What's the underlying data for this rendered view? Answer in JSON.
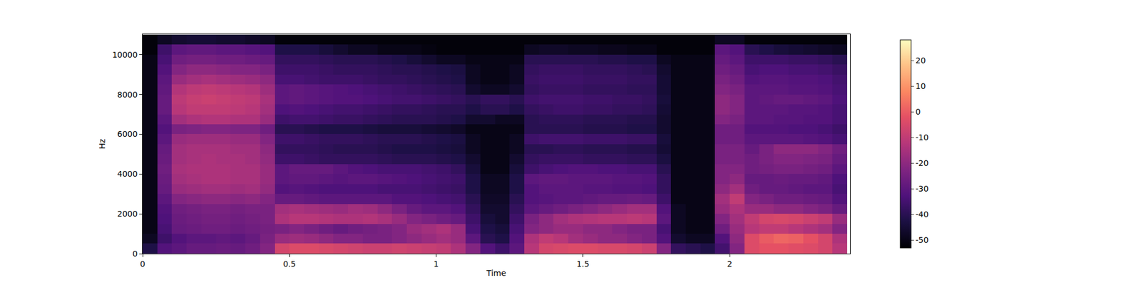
{
  "chart_data": {
    "type": "heatmap",
    "xlabel": "Time",
    "ylabel": "Hz",
    "xlim": [
      0,
      2.41
    ],
    "xticks": [
      0,
      0.5,
      1,
      1.5,
      2
    ],
    "ylim": [
      0,
      11025
    ],
    "yticks": [
      0,
      2000,
      4000,
      6000,
      8000,
      10000
    ],
    "grid": false,
    "colorbar_range": [
      -53,
      28
    ],
    "colorbar_ticks": [
      -50,
      -40,
      -30,
      -20,
      -10,
      0,
      10,
      20
    ],
    "x": [
      0.025,
      0.075,
      0.125,
      0.175,
      0.225,
      0.275,
      0.325,
      0.375,
      0.425,
      0.475,
      0.525,
      0.575,
      0.625,
      0.675,
      0.725,
      0.775,
      0.825,
      0.875,
      0.925,
      0.975,
      1.025,
      1.075,
      1.125,
      1.175,
      1.225,
      1.275,
      1.325,
      1.375,
      1.425,
      1.475,
      1.525,
      1.575,
      1.625,
      1.675,
      1.725,
      1.775,
      1.825,
      1.875,
      1.925,
      1.975,
      2.025,
      2.075,
      2.125,
      2.175,
      2.225,
      2.275,
      2.325,
      2.375
    ],
    "y": [
      250,
      750,
      1250,
      1750,
      2250,
      2750,
      3250,
      3750,
      4250,
      4750,
      5250,
      5750,
      6250,
      6750,
      7250,
      7750,
      8250,
      8750,
      9250,
      9750,
      10250,
      10750
    ],
    "cells": [
      [
        -42,
        -32,
        -30,
        -28,
        -28,
        -27,
        -28,
        -26,
        -22,
        -6,
        -4,
        -4,
        -5,
        -6,
        -7,
        -8,
        -8,
        -7,
        -8,
        -9,
        -10,
        -14,
        -22,
        -32,
        -36,
        -30,
        -12,
        -6,
        -5,
        -4,
        -4,
        -5,
        -5,
        -6,
        -8,
        -22,
        -38,
        -40,
        -42,
        -35,
        -22,
        -4,
        -2,
        -2,
        -3,
        -4,
        -6,
        -12
      ],
      [
        -48,
        -36,
        -32,
        -30,
        -30,
        -29,
        -30,
        -28,
        -24,
        -18,
        -17,
        -18,
        -20,
        -22,
        -22,
        -24,
        -24,
        -22,
        -20,
        -18,
        -16,
        -18,
        -30,
        -40,
        -42,
        -32,
        -14,
        -10,
        -12,
        -16,
        -18,
        -20,
        -20,
        -22,
        -24,
        -32,
        -46,
        -48,
        -48,
        -32,
        -20,
        -4,
        0,
        2,
        1,
        -2,
        -6,
        -14
      ],
      [
        -50,
        -34,
        -28,
        -27,
        -26,
        -26,
        -27,
        -26,
        -25,
        -24,
        -22,
        -24,
        -26,
        -28,
        -26,
        -25,
        -24,
        -22,
        -18,
        -16,
        -14,
        -18,
        -34,
        -42,
        -44,
        -34,
        -22,
        -20,
        -18,
        -18,
        -20,
        -20,
        -22,
        -24,
        -24,
        -34,
        -48,
        -50,
        -50,
        -26,
        -18,
        -12,
        -10,
        -10,
        -12,
        -14,
        -16,
        -22
      ],
      [
        -50,
        -33,
        -27,
        -26,
        -25,
        -25,
        -26,
        -25,
        -24,
        -14,
        -12,
        -12,
        -13,
        -14,
        -14,
        -13,
        -15,
        -18,
        -22,
        -24,
        -26,
        -28,
        -36,
        -44,
        -46,
        -36,
        -24,
        -20,
        -16,
        -14,
        -13,
        -12,
        -12,
        -11,
        -12,
        -30,
        -48,
        -50,
        -50,
        -22,
        -16,
        -10,
        -6,
        -5,
        -6,
        -8,
        -10,
        -18
      ],
      [
        -50,
        -32,
        -26,
        -25,
        -24,
        -24,
        -25,
        -24,
        -24,
        -16,
        -15,
        -16,
        -17,
        -18,
        -16,
        -17,
        -20,
        -24,
        -28,
        -30,
        -30,
        -32,
        -38,
        -46,
        -46,
        -38,
        -30,
        -28,
        -26,
        -24,
        -22,
        -20,
        -18,
        -16,
        -16,
        -32,
        -48,
        -50,
        -50,
        -18,
        -14,
        -18,
        -18,
        -20,
        -20,
        -22,
        -24,
        -28
      ],
      [
        -50,
        -30,
        -22,
        -21,
        -20,
        -20,
        -21,
        -20,
        -22,
        -28,
        -28,
        -29,
        -30,
        -30,
        -30,
        -30,
        -30,
        -32,
        -32,
        -33,
        -34,
        -35,
        -40,
        -47,
        -47,
        -40,
        -32,
        -31,
        -30,
        -30,
        -29,
        -28,
        -28,
        -27,
        -28,
        -36,
        -50,
        -50,
        -50,
        -16,
        -10,
        -22,
        -24,
        -26,
        -26,
        -27,
        -28,
        -32
      ],
      [
        -50,
        -28,
        -18,
        -17,
        -16,
        -16,
        -17,
        -16,
        -19,
        -32,
        -31,
        -32,
        -33,
        -33,
        -33,
        -33,
        -34,
        -34,
        -34,
        -35,
        -36,
        -37,
        -42,
        -48,
        -48,
        -42,
        -32,
        -30,
        -30,
        -30,
        -31,
        -31,
        -32,
        -32,
        -33,
        -38,
        -50,
        -50,
        -50,
        -20,
        -16,
        -26,
        -28,
        -28,
        -29,
        -30,
        -30,
        -34
      ],
      [
        -50,
        -27,
        -16,
        -15,
        -14,
        -14,
        -15,
        -15,
        -18,
        -30,
        -29,
        -29,
        -30,
        -31,
        -30,
        -30,
        -31,
        -32,
        -33,
        -34,
        -35,
        -36,
        -42,
        -48,
        -48,
        -42,
        -30,
        -29,
        -29,
        -30,
        -30,
        -30,
        -31,
        -31,
        -32,
        -38,
        -50,
        -50,
        -50,
        -22,
        -20,
        -28,
        -28,
        -27,
        -28,
        -28,
        -29,
        -33
      ],
      [
        -50,
        -26,
        -15,
        -14,
        -14,
        -14,
        -15,
        -15,
        -18,
        -30,
        -28,
        -28,
        -28,
        -30,
        -32,
        -33,
        -34,
        -34,
        -34,
        -35,
        -36,
        -38,
        -44,
        -50,
        -50,
        -44,
        -36,
        -34,
        -33,
        -32,
        -32,
        -33,
        -33,
        -34,
        -34,
        -40,
        -50,
        -50,
        -50,
        -22,
        -22,
        -26,
        -25,
        -24,
        -24,
        -25,
        -26,
        -30
      ],
      [
        -50,
        -27,
        -16,
        -15,
        -14,
        -15,
        -15,
        -16,
        -19,
        -36,
        -36,
        -37,
        -38,
        -38,
        -38,
        -38,
        -39,
        -40,
        -40,
        -40,
        -41,
        -42,
        -46,
        -50,
        -50,
        -46,
        -38,
        -37,
        -37,
        -37,
        -38,
        -38,
        -38,
        -39,
        -39,
        -43,
        -50,
        -50,
        -50,
        -24,
        -24,
        -26,
        -24,
        -22,
        -22,
        -23,
        -24,
        -28
      ],
      [
        -50,
        -28,
        -16,
        -15,
        -15,
        -15,
        -16,
        -16,
        -20,
        -38,
        -38,
        -38,
        -39,
        -40,
        -40,
        -40,
        -41,
        -42,
        -42,
        -42,
        -43,
        -44,
        -48,
        -50,
        -50,
        -48,
        -40,
        -40,
        -39,
        -39,
        -40,
        -40,
        -40,
        -41,
        -41,
        -45,
        -50,
        -50,
        -50,
        -24,
        -24,
        -28,
        -24,
        -20,
        -20,
        -20,
        -22,
        -26
      ],
      [
        -50,
        -30,
        -18,
        -17,
        -17,
        -17,
        -18,
        -18,
        -22,
        -36,
        -36,
        -37,
        -38,
        -38,
        -38,
        -39,
        -40,
        -40,
        -40,
        -41,
        -42,
        -43,
        -48,
        -50,
        -50,
        -48,
        -36,
        -35,
        -35,
        -35,
        -36,
        -36,
        -36,
        -37,
        -37,
        -44,
        -50,
        -50,
        -50,
        -26,
        -26,
        -30,
        -30,
        -30,
        -30,
        -31,
        -32,
        -34
      ],
      [
        -50,
        -32,
        -24,
        -23,
        -22,
        -22,
        -23,
        -23,
        -26,
        -40,
        -40,
        -41,
        -42,
        -42,
        -42,
        -43,
        -44,
        -44,
        -44,
        -45,
        -46,
        -47,
        -50,
        -50,
        -50,
        -50,
        -40,
        -40,
        -40,
        -40,
        -41,
        -41,
        -41,
        -42,
        -42,
        -46,
        -50,
        -50,
        -50,
        -26,
        -26,
        -32,
        -32,
        -32,
        -33,
        -33,
        -34,
        -36
      ],
      [
        -50,
        -30,
        -16,
        -14,
        -13,
        -13,
        -14,
        -14,
        -18,
        -36,
        -35,
        -35,
        -36,
        -37,
        -37,
        -38,
        -39,
        -40,
        -40,
        -40,
        -41,
        -42,
        -46,
        -46,
        -48,
        -48,
        -40,
        -39,
        -39,
        -39,
        -40,
        -40,
        -40,
        -41,
        -41,
        -46,
        -50,
        -50,
        -50,
        -22,
        -24,
        -30,
        -30,
        -31,
        -31,
        -32,
        -32,
        -34
      ],
      [
        -50,
        -28,
        -12,
        -10,
        -10,
        -10,
        -11,
        -12,
        -16,
        -33,
        -32,
        -33,
        -34,
        -35,
        -35,
        -36,
        -37,
        -38,
        -38,
        -39,
        -40,
        -40,
        -42,
        -40,
        -40,
        -42,
        -38,
        -37,
        -36,
        -36,
        -37,
        -37,
        -38,
        -38,
        -39,
        -45,
        -50,
        -50,
        -50,
        -20,
        -22,
        -30,
        -30,
        -30,
        -31,
        -31,
        -32,
        -34
      ],
      [
        -50,
        -28,
        -11,
        -9,
        -8,
        -9,
        -10,
        -11,
        -15,
        -30,
        -29,
        -30,
        -31,
        -32,
        -32,
        -33,
        -34,
        -35,
        -35,
        -36,
        -37,
        -38,
        -40,
        -38,
        -38,
        -40,
        -36,
        -35,
        -35,
        -35,
        -36,
        -36,
        -37,
        -37,
        -38,
        -44,
        -50,
        -50,
        -50,
        -20,
        -22,
        -30,
        -29,
        -28,
        -28,
        -29,
        -30,
        -33
      ],
      [
        -50,
        -29,
        -13,
        -11,
        -10,
        -11,
        -12,
        -13,
        -17,
        -30,
        -29,
        -30,
        -31,
        -32,
        -33,
        -34,
        -35,
        -36,
        -37,
        -38,
        -39,
        -40,
        -46,
        -48,
        -48,
        -46,
        -38,
        -37,
        -37,
        -37,
        -38,
        -38,
        -38,
        -39,
        -39,
        -45,
        -50,
        -50,
        -50,
        -22,
        -24,
        -30,
        -30,
        -30,
        -31,
        -31,
        -32,
        -34
      ],
      [
        -50,
        -30,
        -18,
        -16,
        -15,
        -16,
        -17,
        -18,
        -20,
        -34,
        -34,
        -35,
        -36,
        -36,
        -36,
        -37,
        -38,
        -38,
        -39,
        -40,
        -41,
        -42,
        -48,
        -50,
        -50,
        -48,
        -37,
        -36,
        -36,
        -36,
        -37,
        -37,
        -37,
        -38,
        -38,
        -45,
        -50,
        -50,
        -50,
        -24,
        -26,
        -32,
        -31,
        -31,
        -32,
        -32,
        -33,
        -35
      ],
      [
        -50,
        -32,
        -22,
        -20,
        -20,
        -21,
        -22,
        -22,
        -24,
        -36,
        -36,
        -36,
        -37,
        -38,
        -38,
        -38,
        -39,
        -40,
        -40,
        -41,
        -42,
        -43,
        -48,
        -50,
        -50,
        -48,
        -38,
        -37,
        -37,
        -37,
        -38,
        -38,
        -38,
        -39,
        -40,
        -46,
        -50,
        -50,
        -50,
        -26,
        -28,
        -34,
        -33,
        -33,
        -34,
        -34,
        -35,
        -37
      ],
      [
        -50,
        -34,
        -26,
        -25,
        -25,
        -26,
        -26,
        -27,
        -28,
        -38,
        -38,
        -38,
        -39,
        -40,
        -40,
        -40,
        -41,
        -42,
        -44,
        -46,
        -48,
        -48,
        -50,
        -50,
        -50,
        -50,
        -40,
        -40,
        -40,
        -40,
        -40,
        -41,
        -41,
        -42,
        -42,
        -48,
        -50,
        -50,
        -50,
        -28,
        -30,
        -36,
        -36,
        -36,
        -37,
        -37,
        -38,
        -40
      ],
      [
        -52,
        -36,
        -30,
        -29,
        -29,
        -30,
        -30,
        -31,
        -32,
        -42,
        -42,
        -42,
        -44,
        -46,
        -48,
        -48,
        -50,
        -50,
        -50,
        -51,
        -52,
        -52,
        -52,
        -52,
        -52,
        -52,
        -48,
        -47,
        -47,
        -48,
        -48,
        -49,
        -49,
        -50,
        -50,
        -52,
        -52,
        -52,
        -52,
        -30,
        -32,
        -40,
        -42,
        -44,
        -45,
        -46,
        -47,
        -48
      ],
      [
        -52,
        -48,
        -46,
        -45,
        -45,
        -46,
        -46,
        -47,
        -48,
        -52,
        -52,
        -52,
        -52,
        -52,
        -52,
        -52,
        -52,
        -52,
        -52,
        -52,
        -52,
        -52,
        -52,
        -52,
        -52,
        -52,
        -52,
        -52,
        -52,
        -52,
        -52,
        -52,
        -52,
        -52,
        -52,
        -52,
        -52,
        -52,
        -52,
        -48,
        -48,
        -52,
        -52,
        -52,
        -52,
        -52,
        -52,
        -52
      ]
    ]
  }
}
